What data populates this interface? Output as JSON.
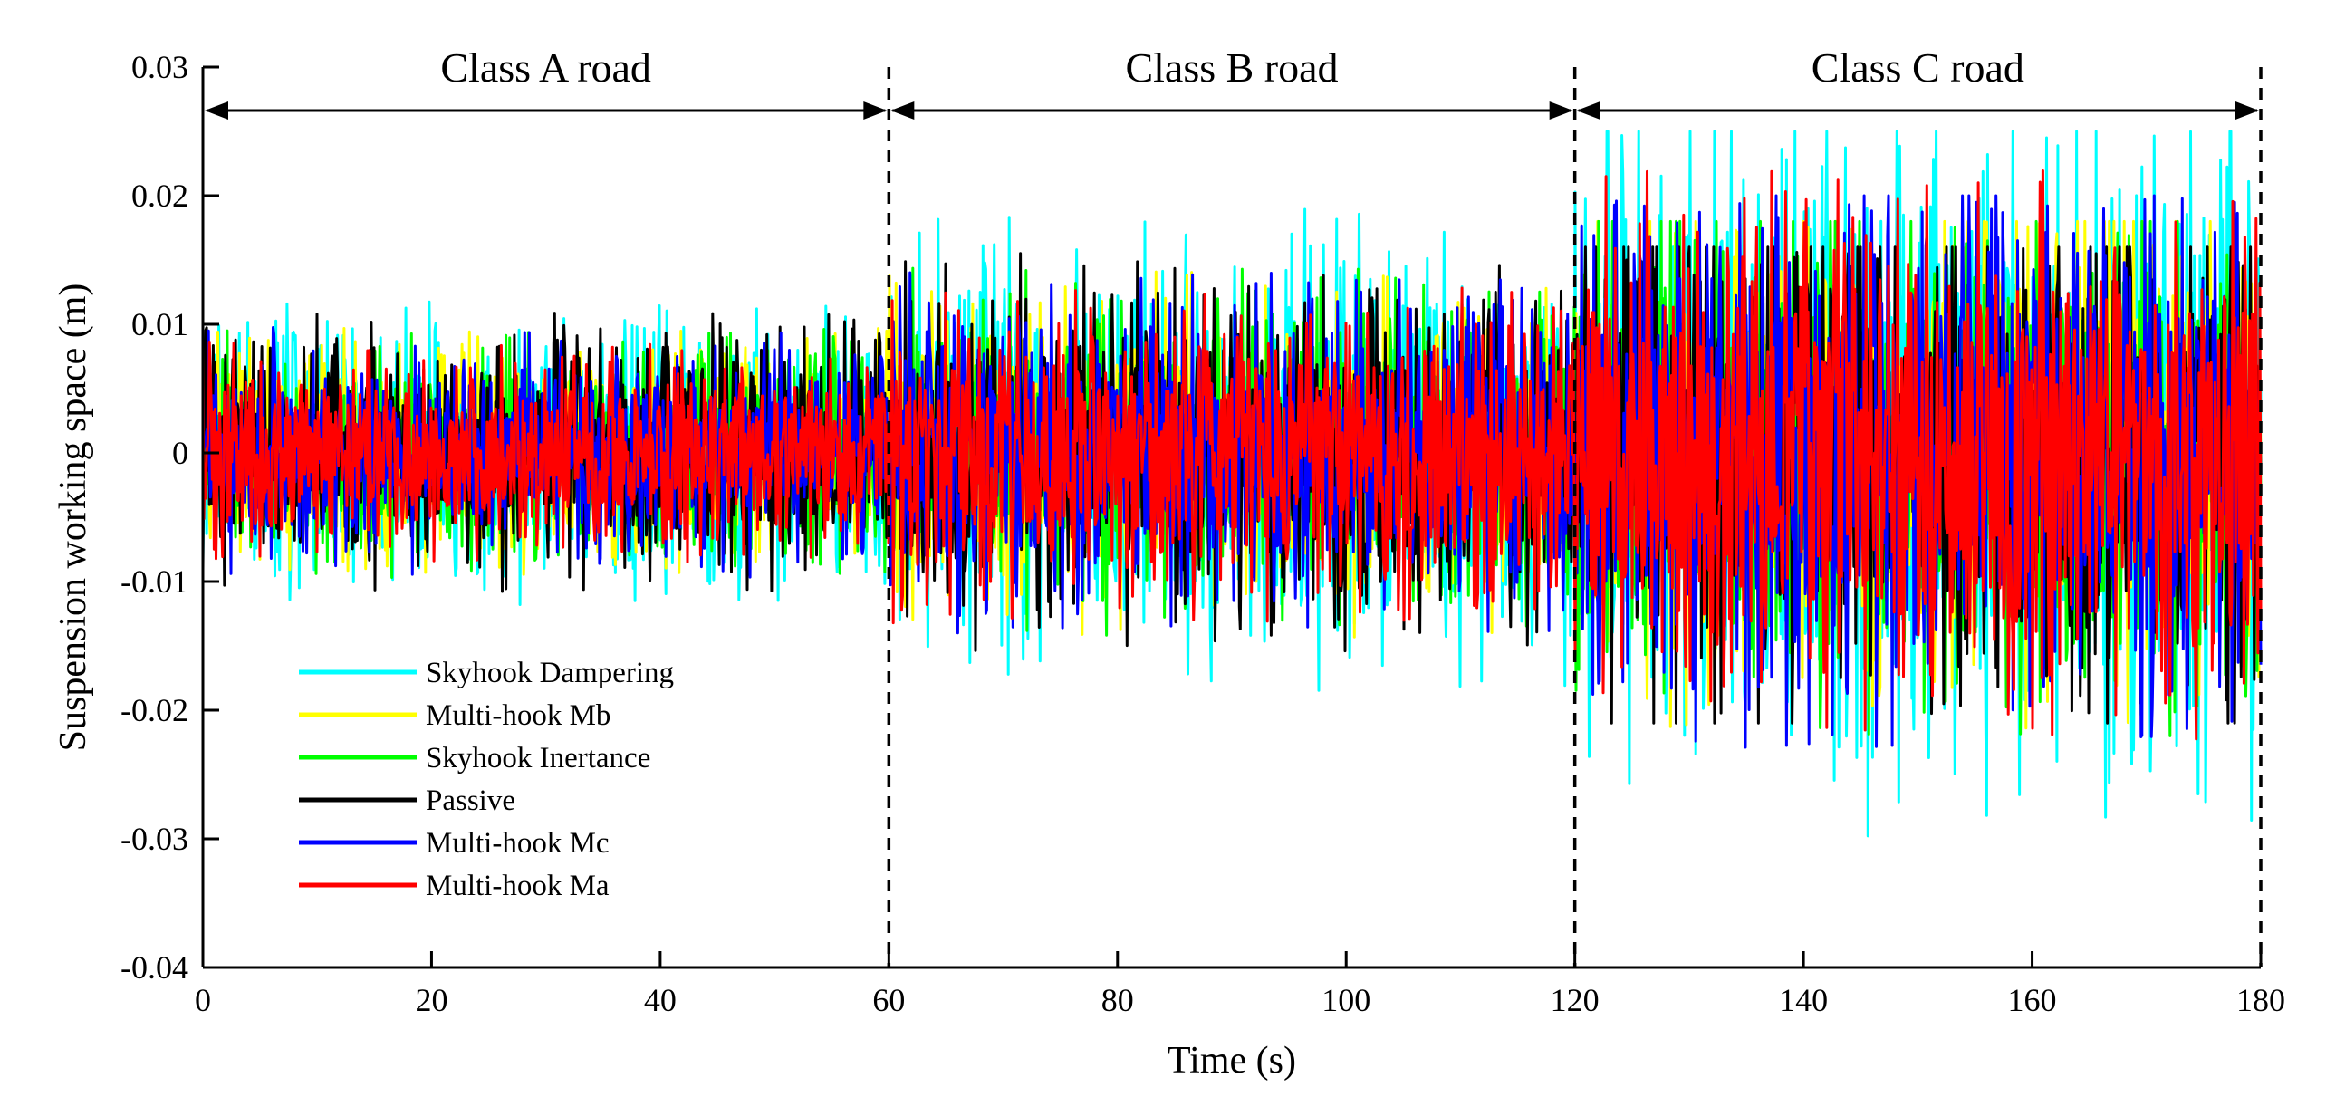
{
  "chart_data": {
    "type": "line",
    "title": "",
    "xlabel": "Time (s)",
    "ylabel": "Suspension working space (m)",
    "xlim": [
      0,
      180
    ],
    "ylim": [
      -0.04,
      0.03
    ],
    "xticks": [
      0,
      20,
      40,
      60,
      80,
      100,
      120,
      140,
      160,
      180
    ],
    "xtick_labels": [
      "0",
      "20",
      "40",
      "60",
      "80",
      "100",
      "120",
      "140",
      "160",
      "180"
    ],
    "yticks": [
      0.03,
      0.02,
      0.01,
      0,
      -0.01,
      -0.02,
      -0.03,
      -0.04
    ],
    "ytick_labels": [
      "0.03",
      "0.02",
      "0.01",
      "0",
      "-0.01",
      "-0.02",
      "-0.03",
      "-0.04"
    ],
    "grid": false,
    "legend_position": "lower-left",
    "regions": [
      {
        "label": "Class A road",
        "x_start": 0,
        "x_end": 60
      },
      {
        "label": "Class B road",
        "x_start": 60,
        "x_end": 120
      },
      {
        "label": "Class C road",
        "x_start": 120,
        "x_end": 180
      }
    ],
    "region_boundaries": [
      60,
      120,
      180
    ],
    "series": [
      {
        "name": "Skyhook Dampering",
        "color": "#00ffff",
        "amplitude": [
          0.0105,
          0.0165,
          0.0265
        ],
        "peak_max": 0.025,
        "peak_min": -0.03
      },
      {
        "name": "Multi-hook Mb",
        "color": "#ffff00",
        "amplitude": [
          0.0085,
          0.0125,
          0.0195
        ],
        "peak_max": 0.018,
        "peak_min": -0.022
      },
      {
        "name": "Skyhook Inertance",
        "color": "#00ff00",
        "amplitude": [
          0.0085,
          0.0125,
          0.0195
        ],
        "peak_max": 0.018,
        "peak_min": -0.022
      },
      {
        "name": "Passive",
        "color": "#000000",
        "amplitude": [
          0.0095,
          0.0135,
          0.0195
        ],
        "peak_max": 0.016,
        "peak_min": -0.021
      },
      {
        "name": "Multi-hook Mc",
        "color": "#0000ff",
        "amplitude": [
          0.0085,
          0.0125,
          0.0205
        ],
        "peak_max": 0.02,
        "peak_min": -0.023
      },
      {
        "name": "Multi-hook Ma",
        "color": "#ff0000",
        "amplitude": [
          0.0075,
          0.0115,
          0.0195
        ],
        "peak_max": 0.023,
        "peak_min": -0.023
      }
    ]
  }
}
